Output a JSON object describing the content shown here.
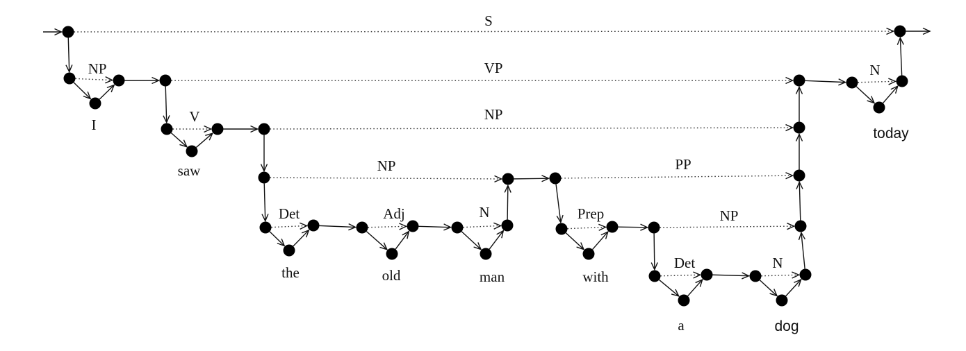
{
  "constituents": {
    "s": "S",
    "vp": "VP",
    "np_obj": "NP",
    "np_man": "NP",
    "pp": "PP",
    "np_dog": "NP"
  },
  "categories": {
    "np_i": "NP",
    "v_saw": "V",
    "det_the": "Det",
    "adj_old": "Adj",
    "n_man": "N",
    "prep_with": "Prep",
    "det_a": "Det",
    "n_dog": "N",
    "n_today": "N"
  },
  "words": {
    "i": "I",
    "saw": "saw",
    "the": "the",
    "old": "old",
    "man": "man",
    "with": "with",
    "a": "a",
    "dog": "dog",
    "today": "today"
  }
}
